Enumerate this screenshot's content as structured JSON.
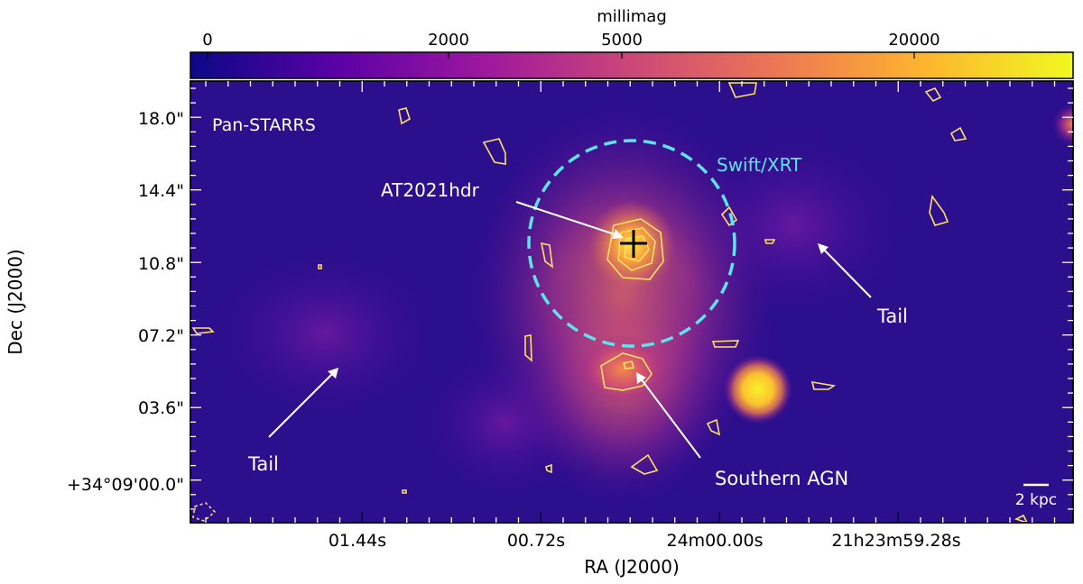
{
  "colorbar": {
    "label": "millimag",
    "ticks": [
      "0",
      "2000",
      "5000",
      "20000"
    ]
  },
  "axes": {
    "xlabel": "RA (J2000)",
    "ylabel": "Dec (J2000)",
    "xticks": [
      "01.44s",
      "00.72s",
      "24m00.00s",
      "21h23m59.28s"
    ],
    "yticks": [
      "18.0\"",
      "14.4\"",
      "10.8\"",
      "07.2\"",
      "03.6\"",
      "+34°09'00.0\""
    ]
  },
  "annotations": {
    "survey": "Pan-STARRS",
    "xrt": "Swift/XRT",
    "source": "AT2021hdr",
    "tail_right": "Tail",
    "tail_left": "Tail",
    "agn": "Southern AGN",
    "scalebar": "2 kpc"
  },
  "colors": {
    "background": "#2a0f8a",
    "xrt_circle": "#5fe3ee",
    "contours": "#ffe066",
    "annotation_text": "#ffffff",
    "colormap": [
      "#0d0887",
      "#5c01a6",
      "#9c179e",
      "#cc4778",
      "#ed7953",
      "#fdb42f",
      "#f0f921"
    ]
  }
}
